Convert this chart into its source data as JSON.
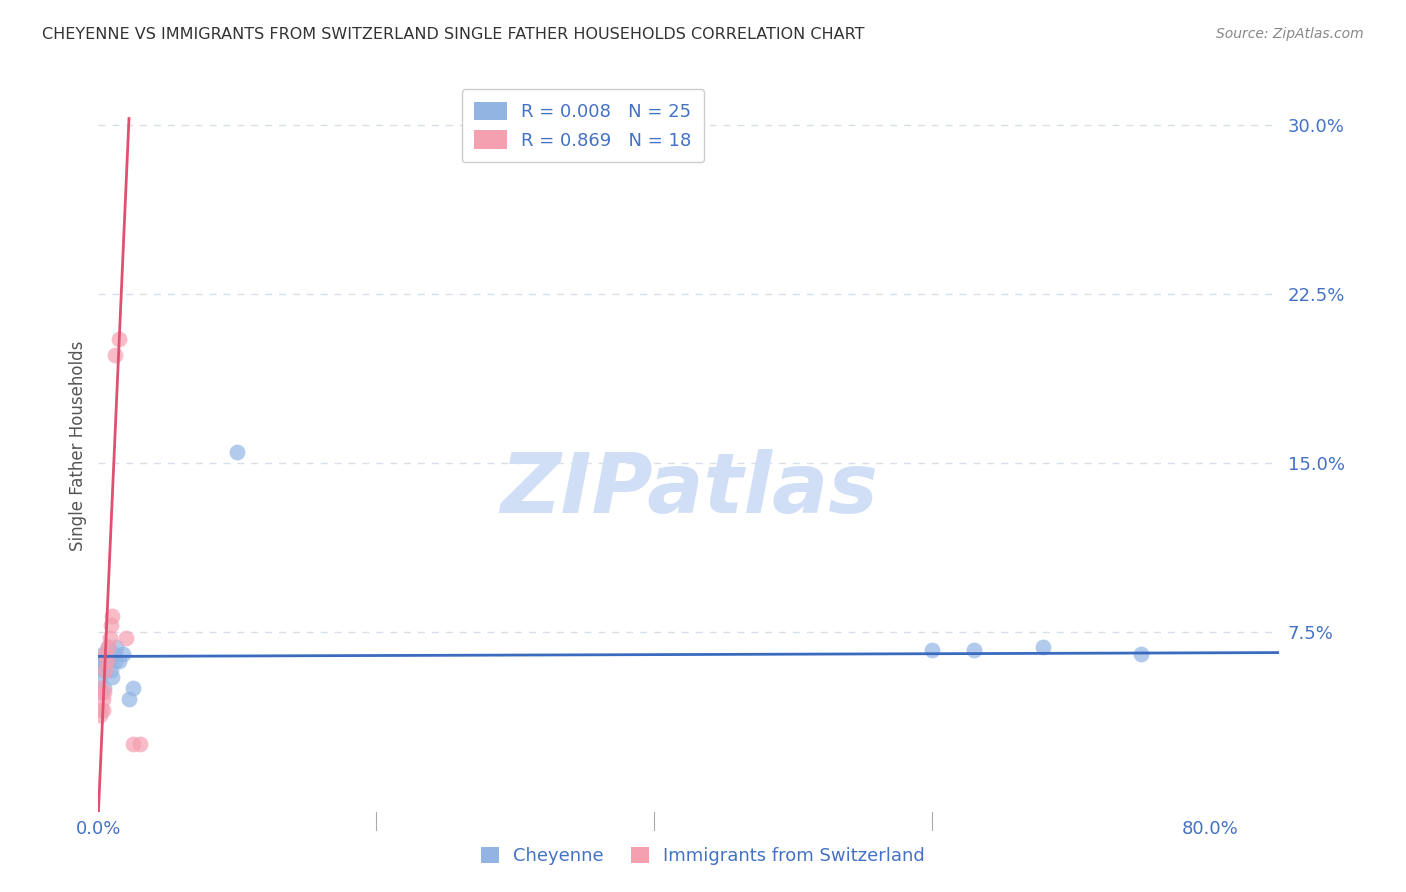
{
  "title": "CHEYENNE VS IMMIGRANTS FROM SWITZERLAND SINGLE FATHER HOUSEHOLDS CORRELATION CHART",
  "source": "Source: ZipAtlas.com",
  "ylabel": "Single Father Households",
  "xlim": [
    0.0,
    0.85
  ],
  "ylim": [
    -0.005,
    0.32
  ],
  "cheyenne_color": "#92b4e3",
  "swiss_color": "#f4a0b0",
  "line_cheyenne_color": "#3a6bbf",
  "line_swiss_color": "#e05070",
  "watermark_color": "#d0dff5",
  "grid_color": "#d8dfe8",
  "bg_color": "#ffffff",
  "title_color": "#333333",
  "axis_color": "#4472c4",
  "cheyenne_x": [
    0.001,
    0.002,
    0.002,
    0.003,
    0.003,
    0.004,
    0.004,
    0.005,
    0.006,
    0.007,
    0.008,
    0.009,
    0.01,
    0.011,
    0.012,
    0.013,
    0.015,
    0.018,
    0.022,
    0.025,
    0.1,
    0.6,
    0.63,
    0.68,
    0.75
  ],
  "cheyenne_y": [
    0.055,
    0.062,
    0.048,
    0.058,
    0.065,
    0.06,
    0.05,
    0.063,
    0.062,
    0.068,
    0.063,
    0.058,
    0.055,
    0.065,
    0.062,
    0.068,
    0.062,
    0.065,
    0.045,
    0.05,
    0.155,
    0.067,
    0.067,
    0.068,
    0.065
  ],
  "swiss_x": [
    0.001,
    0.001,
    0.002,
    0.003,
    0.003,
    0.004,
    0.005,
    0.005,
    0.006,
    0.007,
    0.008,
    0.009,
    0.01,
    0.012,
    0.015,
    0.02,
    0.025,
    0.03
  ],
  "swiss_y": [
    0.038,
    0.05,
    0.04,
    0.045,
    0.04,
    0.048,
    0.058,
    0.065,
    0.062,
    0.068,
    0.072,
    0.078,
    0.082,
    0.198,
    0.205,
    0.072,
    0.025,
    0.025
  ],
  "legend_entries": [
    {
      "label": "R = 0.008   N = 25",
      "color": "#92b4e3"
    },
    {
      "label": "R = 0.869   N = 18",
      "color": "#f4a0b0"
    }
  ],
  "bottom_legend": [
    "Cheyenne",
    "Immigrants from Switzerland"
  ]
}
